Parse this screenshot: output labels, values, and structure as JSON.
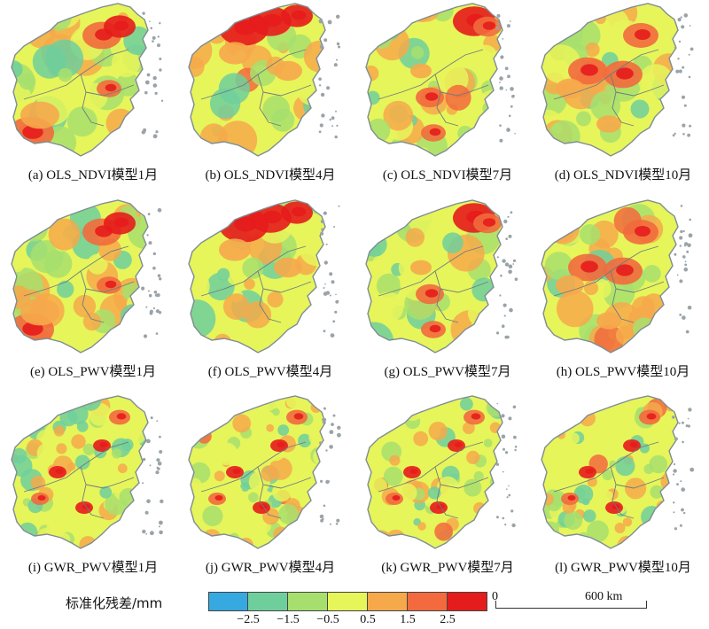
{
  "panels": [
    {
      "label": "(a) OLS_NDVI模型1月",
      "hot": "sw",
      "seed": 1
    },
    {
      "label": "(b) OLS_NDVI模型4月",
      "hot": "n",
      "seed": 2
    },
    {
      "label": "(c) OLS_NDVI模型7月",
      "hot": "ne",
      "seed": 3
    },
    {
      "label": "(d) OLS_NDVI模型10月",
      "hot": "c",
      "seed": 4
    },
    {
      "label": "(e) OLS_PWV模型1月",
      "hot": "sw",
      "seed": 5
    },
    {
      "label": "(f) OLS_PWV模型4月",
      "hot": "n",
      "seed": 6
    },
    {
      "label": "(g) OLS_PWV模型7月",
      "hot": "ne",
      "seed": 7
    },
    {
      "label": "(h) OLS_PWV模型10月",
      "hot": "c",
      "seed": 8
    },
    {
      "label": "(i) GWR_PWV模型1月",
      "hot": "mix",
      "seed": 9
    },
    {
      "label": "(j) GWR_PWV模型4月",
      "hot": "mix",
      "seed": 10
    },
    {
      "label": "(k) GWR_PWV模型7月",
      "hot": "mix",
      "seed": 11
    },
    {
      "label": "(l) GWR_PWV模型10月",
      "hot": "mix",
      "seed": 12
    }
  ],
  "legend": {
    "title": "标准化残差/mm",
    "colors": [
      "#36a9e1",
      "#6fcf9c",
      "#a7df6e",
      "#e6f55a",
      "#f6a94b",
      "#f26a3d",
      "#e51c1c"
    ],
    "ticks": [
      "−2.5",
      "−1.5",
      "−0.5",
      "0.5",
      "1.5",
      "2.5"
    ]
  },
  "scale_bar": {
    "start": "0",
    "end": "600 km"
  }
}
